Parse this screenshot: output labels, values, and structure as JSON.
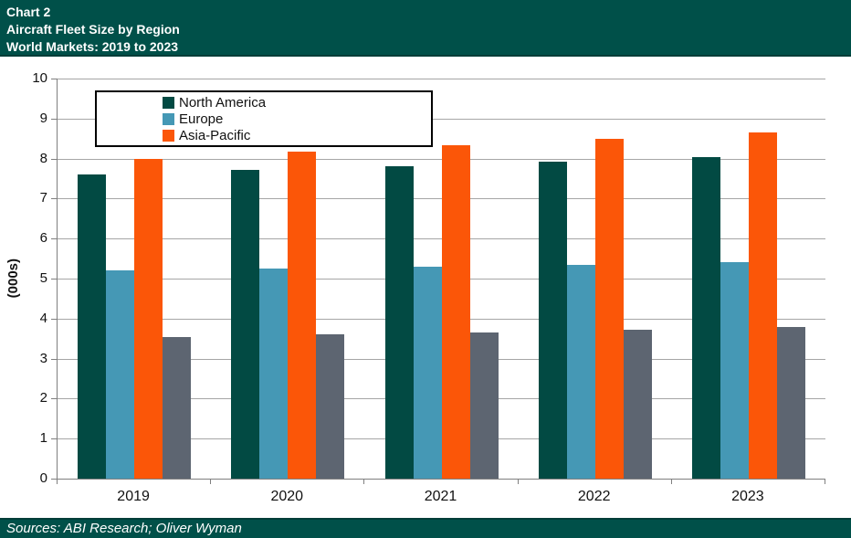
{
  "header": {
    "line1": "Chart 2",
    "line2": "Aircraft Fleet Size by Region",
    "line3": "World Markets: 2019 to 2023"
  },
  "footer": {
    "sources": "Sources: ABI Research; Oliver Wyman"
  },
  "colors": {
    "band_background": "#005049",
    "gridline": "#A6A6A6",
    "axis": "#7F7F7F",
    "north_america": "#024A43",
    "europe": "#4598B5",
    "asia_pacific": "#FB5608",
    "unlabeled_gray": "#5D6571"
  },
  "chart_data": {
    "type": "bar",
    "title": "Aircraft Fleet Size by Region",
    "subtitle": "World Markets: 2019 to 2023",
    "ylabel": "(000s)",
    "xlabel": "",
    "ylim": [
      0,
      10
    ],
    "ytick_step": 1,
    "grid": "horizontal",
    "legend_position": "top-left-inside",
    "categories": [
      "2019",
      "2020",
      "2021",
      "2022",
      "2023"
    ],
    "series": [
      {
        "name": "North America",
        "color": "#024A43",
        "in_legend": true,
        "values": [
          7.6,
          7.72,
          7.81,
          7.93,
          8.04
        ]
      },
      {
        "name": "Europe",
        "color": "#4598B5",
        "in_legend": true,
        "values": [
          5.2,
          5.26,
          5.3,
          5.35,
          5.4
        ]
      },
      {
        "name": "Asia-Pacific",
        "color": "#FB5608",
        "in_legend": true,
        "values": [
          8.0,
          8.17,
          8.33,
          8.5,
          8.65
        ]
      },
      {
        "name": "",
        "color": "#5D6571",
        "in_legend": false,
        "values": [
          3.53,
          3.6,
          3.66,
          3.73,
          3.8
        ]
      }
    ]
  }
}
